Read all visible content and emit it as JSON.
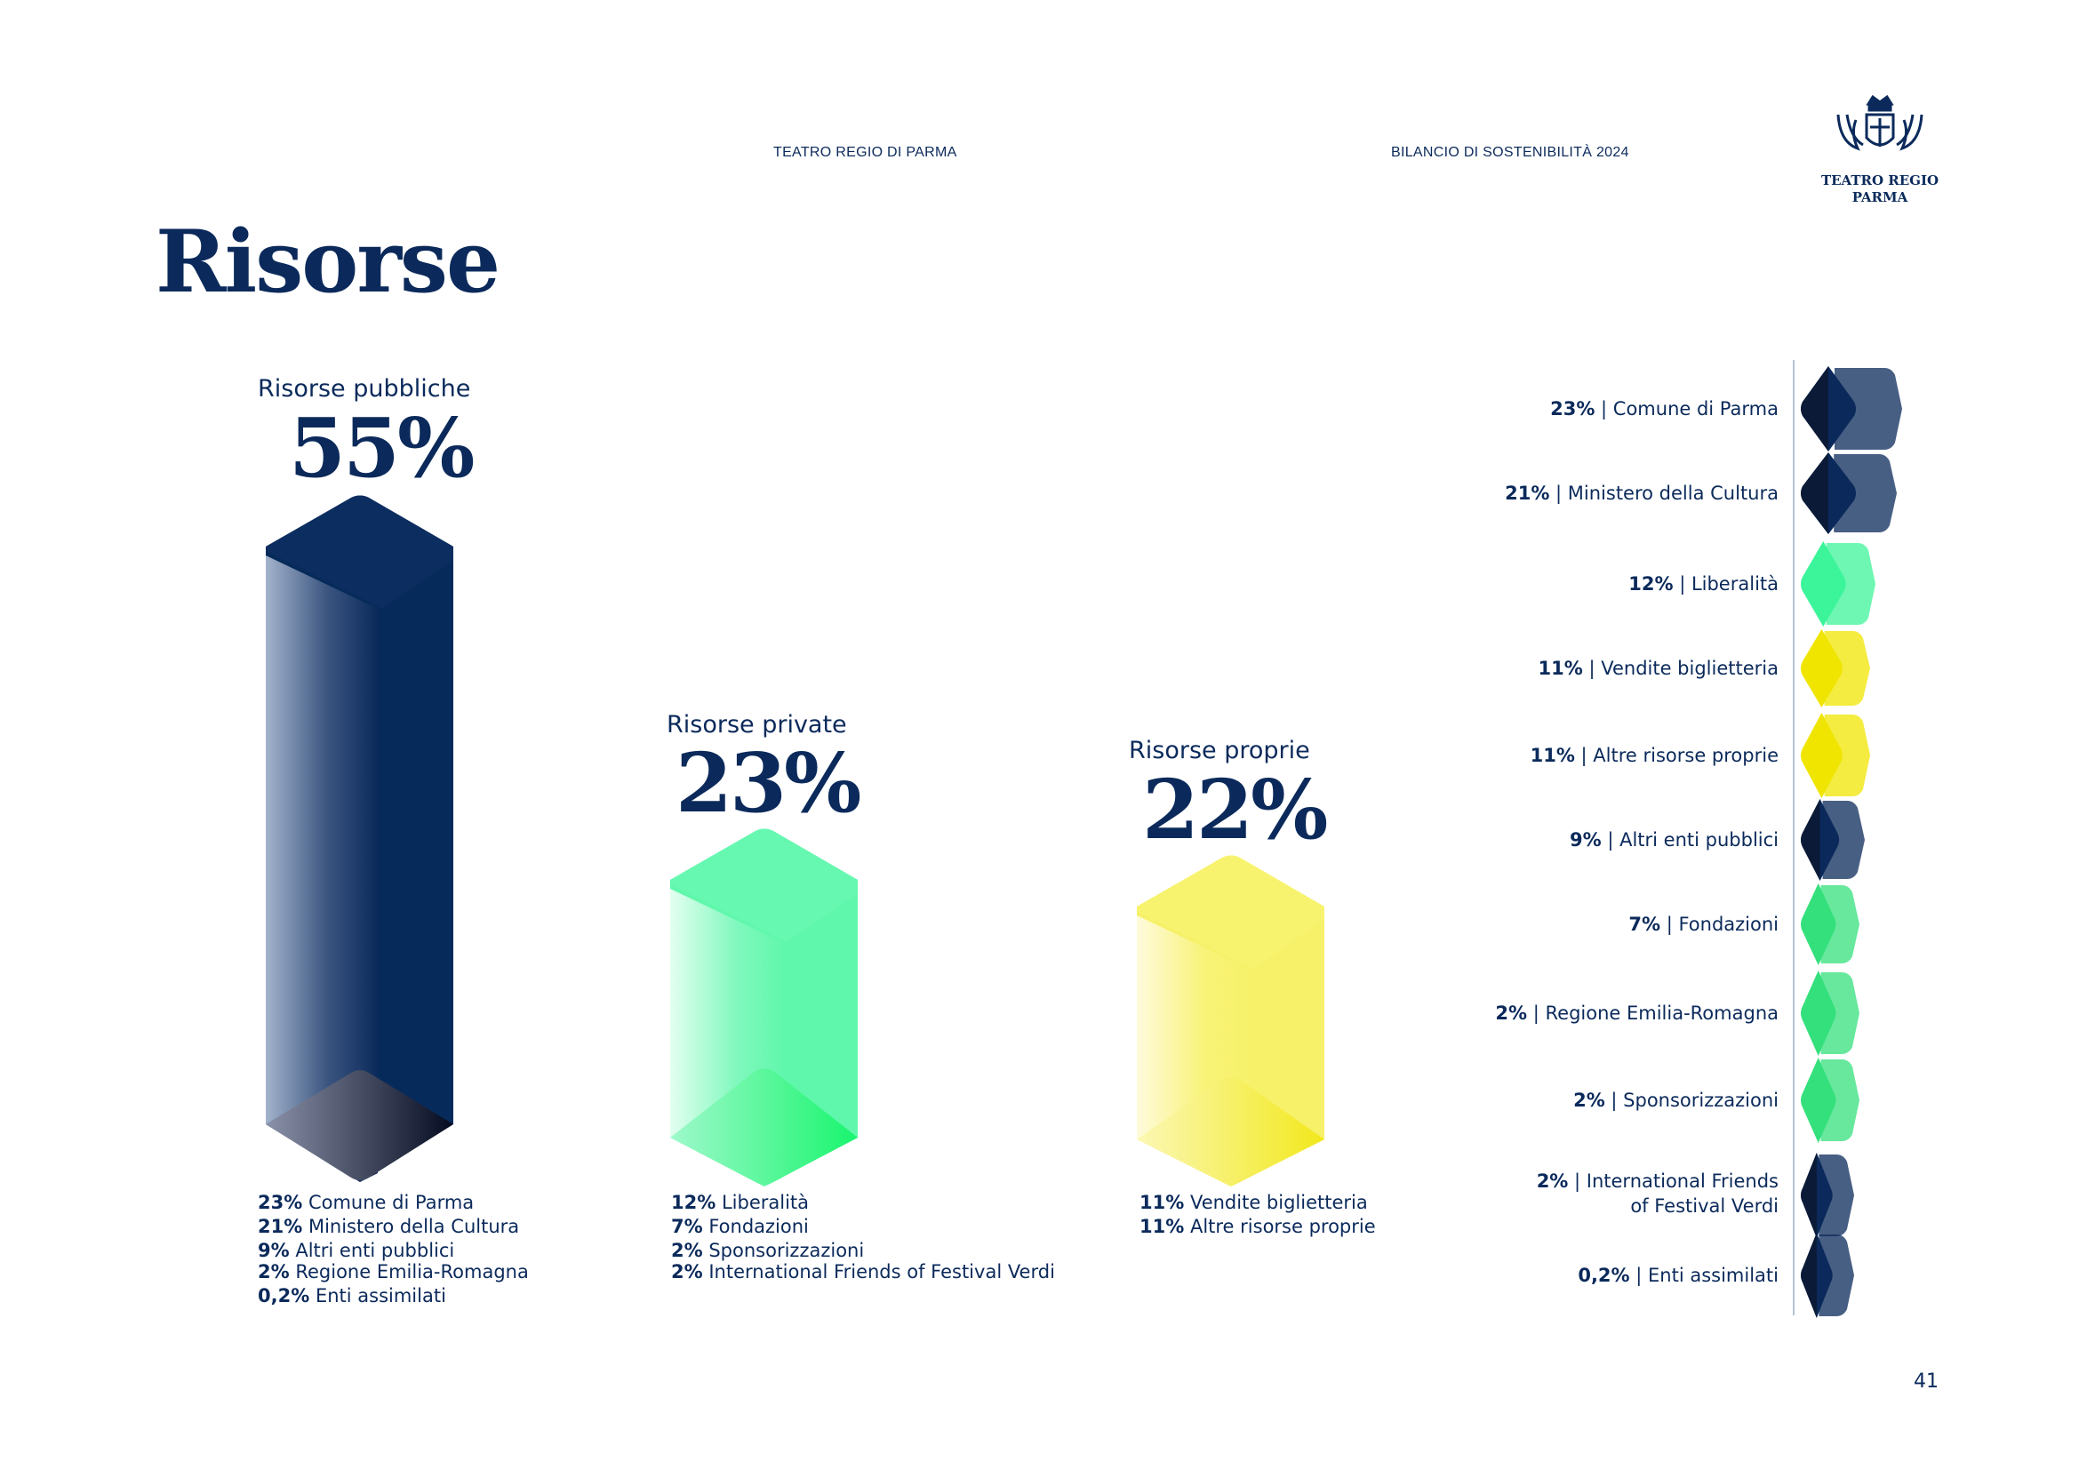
{
  "header": {
    "org": "TEATRO REGIO DI PARMA",
    "report": "BILANCIO DI SOSTENIBILITÀ 2024",
    "logo_text": "TEATRO REGIO PARMA"
  },
  "title": "Risorse",
  "groups": [
    {
      "label": "Risorse pubbliche",
      "percent": "55%",
      "color": "#0b2a5b",
      "items": [
        {
          "pct": "23%",
          "name": "Comune di Parma"
        },
        {
          "pct": "21%",
          "name": "Ministero della Cultura"
        },
        {
          "pct": "9%",
          "name": "Altri enti pubblici"
        },
        {
          "pct": "2%",
          "name": "Regione Emilia-Romagna"
        },
        {
          "pct": "0,2%",
          "name": "Enti assimilati"
        }
      ]
    },
    {
      "label": "Risorse private",
      "percent": "23%",
      "color": "#3cf49a",
      "items": [
        {
          "pct": "12%",
          "name": "Liberalità"
        },
        {
          "pct": "7%",
          "name": "Fondazioni"
        },
        {
          "pct": "2%",
          "name": "Sponsorizzazioni"
        },
        {
          "pct": "2%",
          "name": "International Friends of Festival Verdi"
        }
      ]
    },
    {
      "label": "Risorse proprie",
      "percent": "22%",
      "color": "#f4ee3a",
      "items": [
        {
          "pct": "11%",
          "name": "Vendite biglietteria"
        },
        {
          "pct": "11%",
          "name": "Altre risorse proprie"
        }
      ]
    }
  ],
  "legend": [
    {
      "pct": "23%",
      "name": "Comune di Parma",
      "color": "#0b2a5b"
    },
    {
      "pct": "21%",
      "name": "Ministero della Cultura",
      "color": "#0b2a5b"
    },
    {
      "pct": "12%",
      "name": "Liberalità",
      "color": "#3cf49a"
    },
    {
      "pct": "11%",
      "name": "Vendite biglietteria",
      "color": "#f0e500"
    },
    {
      "pct": "11%",
      "name": "Altre risorse proprie",
      "color": "#f0e500"
    },
    {
      "pct": "9%",
      "name": "Altri enti pubblici",
      "color": "#0b2a5b"
    },
    {
      "pct": "7%",
      "name": "Fondazioni",
      "color": "#34e07c"
    },
    {
      "pct": "2%",
      "name": "Regione Emilia-Romagna",
      "color": "#34e07c"
    },
    {
      "pct": "2%",
      "name": "Sponsorizzazioni",
      "color": "#34e07c"
    },
    {
      "pct": "2%",
      "name": "International Friends",
      "name2": "of Festival Verdi",
      "color": "#0b2a5b"
    },
    {
      "pct": "0,2%",
      "name": "Enti assimilati",
      "color": "#0b2a5b"
    }
  ],
  "page_number": "41"
}
